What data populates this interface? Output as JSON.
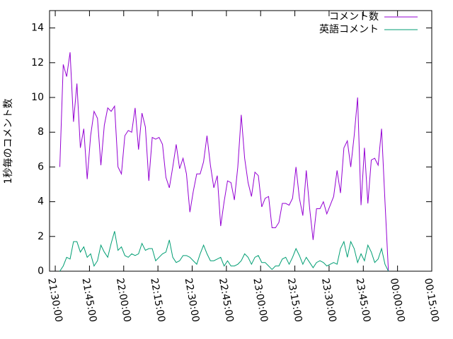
{
  "chart_data": {
    "type": "line",
    "ylabel": "1秒毎のコメント数",
    "x": [
      "21:32:00",
      "21:33:30",
      "21:35:00",
      "21:36:30",
      "21:38:00",
      "21:39:30",
      "21:41:00",
      "21:42:30",
      "21:44:00",
      "21:45:30",
      "21:47:00",
      "21:48:30",
      "21:50:00",
      "21:51:30",
      "21:53:00",
      "21:54:30",
      "21:56:00",
      "21:57:30",
      "21:59:00",
      "22:00:30",
      "22:02:00",
      "22:03:30",
      "22:05:00",
      "22:06:30",
      "22:08:00",
      "22:09:30",
      "22:11:00",
      "22:12:30",
      "22:14:00",
      "22:15:30",
      "22:17:00",
      "22:18:30",
      "22:20:00",
      "22:21:30",
      "22:23:00",
      "22:24:30",
      "22:26:00",
      "22:27:30",
      "22:29:00",
      "22:30:30",
      "22:32:00",
      "22:33:30",
      "22:35:00",
      "22:36:30",
      "22:38:00",
      "22:39:30",
      "22:41:00",
      "22:42:30",
      "22:44:00",
      "22:45:30",
      "22:47:00",
      "22:48:30",
      "22:50:00",
      "22:51:30",
      "22:53:00",
      "22:54:30",
      "22:56:00",
      "22:57:30",
      "22:59:00",
      "23:00:30",
      "23:02:00",
      "23:03:30",
      "23:05:00",
      "23:06:30",
      "23:08:00",
      "23:09:30",
      "23:11:00",
      "23:12:30",
      "23:14:00",
      "23:15:30",
      "23:17:00",
      "23:18:30",
      "23:20:00",
      "23:21:30",
      "23:23:00",
      "23:24:30",
      "23:26:00",
      "23:27:30",
      "23:29:00",
      "23:30:30",
      "23:32:00",
      "23:33:30",
      "23:35:00",
      "23:36:30",
      "23:38:00",
      "23:39:30",
      "23:41:00",
      "23:42:30",
      "23:44:00",
      "23:45:30",
      "23:47:00",
      "23:48:30",
      "23:50:00",
      "23:51:30",
      "23:53:00",
      "23:54:30",
      "23:56:00"
    ],
    "series": [
      {
        "name": "コメント数",
        "color": "#9400d3",
        "values": [
          6.0,
          11.9,
          11.2,
          12.6,
          8.6,
          10.8,
          7.1,
          8.2,
          5.3,
          7.8,
          9.2,
          8.8,
          6.1,
          8.4,
          9.4,
          9.2,
          9.5,
          6.0,
          5.6,
          7.8,
          8.1,
          8.0,
          9.4,
          7.0,
          9.1,
          8.3,
          5.2,
          7.7,
          7.6,
          7.7,
          7.3,
          5.4,
          4.8,
          6.0,
          7.3,
          5.9,
          6.5,
          5.6,
          3.4,
          4.6,
          5.6,
          5.6,
          6.3,
          7.8,
          6.1,
          4.8,
          5.5,
          2.6,
          4.0,
          5.2,
          5.1,
          4.1,
          6.0,
          9.0,
          6.5,
          5.1,
          4.3,
          5.7,
          5.5,
          3.7,
          4.2,
          4.3,
          2.5,
          2.5,
          2.8,
          3.9,
          3.9,
          3.8,
          4.2,
          6.0,
          4.2,
          3.2,
          5.8,
          3.6,
          1.8,
          3.6,
          3.6,
          4.0,
          3.3,
          3.8,
          4.3,
          5.8,
          4.5,
          7.1,
          7.5,
          6.0,
          7.8,
          10.0,
          3.8,
          7.1,
          3.9,
          6.4,
          6.5,
          6.1,
          8.2,
          4.0,
          0.0
        ]
      },
      {
        "name": "英語コメント",
        "color": "#009e73",
        "values": [
          0.0,
          0.3,
          0.8,
          0.7,
          1.7,
          1.7,
          1.1,
          1.4,
          0.8,
          1.0,
          0.3,
          0.6,
          1.5,
          1.1,
          0.8,
          1.6,
          2.3,
          1.2,
          1.4,
          0.9,
          0.8,
          1.0,
          0.9,
          1.0,
          1.6,
          1.2,
          1.3,
          1.3,
          0.6,
          0.8,
          1.0,
          1.1,
          1.8,
          0.8,
          0.5,
          0.6,
          0.9,
          0.9,
          0.8,
          0.6,
          0.4,
          1.0,
          1.5,
          1.0,
          0.6,
          0.6,
          0.7,
          0.8,
          0.3,
          0.6,
          0.3,
          0.3,
          0.4,
          0.6,
          1.0,
          0.8,
          0.4,
          0.8,
          0.9,
          0.5,
          0.5,
          0.3,
          0.1,
          0.3,
          0.3,
          0.7,
          0.8,
          0.4,
          0.8,
          1.3,
          0.9,
          0.4,
          0.8,
          0.5,
          0.2,
          0.5,
          0.6,
          0.5,
          0.3,
          0.4,
          0.5,
          0.4,
          1.3,
          1.7,
          0.8,
          1.7,
          1.3,
          0.5,
          1.0,
          0.6,
          1.5,
          1.1,
          0.5,
          0.7,
          1.3,
          0.4,
          0.0
        ]
      }
    ],
    "xlim": [
      "21:27:30",
      "00:15:00"
    ],
    "xticks": [
      "21:30:00",
      "21:45:00",
      "22:00:00",
      "22:15:00",
      "22:30:00",
      "22:45:00",
      "23:00:00",
      "23:15:00",
      "23:30:00",
      "23:45:00",
      "00:00:00",
      "00:15:00"
    ],
    "ylim": [
      0,
      15
    ],
    "yticks": [
      0,
      2,
      4,
      6,
      8,
      10,
      12,
      14
    ],
    "legend": "upper right"
  }
}
